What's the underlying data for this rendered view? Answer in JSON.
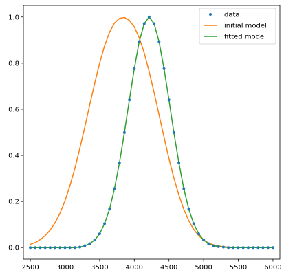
{
  "chart_data": {
    "type": "line",
    "title": "",
    "xlabel": "",
    "ylabel": "",
    "xlim": [
      2400,
      6100
    ],
    "ylim": [
      -0.05,
      1.05
    ],
    "xticks": [
      2500,
      3000,
      3500,
      4000,
      4500,
      5000,
      5500,
      6000
    ],
    "yticks": [
      0.0,
      0.2,
      0.4,
      0.6,
      0.8,
      1.0
    ],
    "xtick_labels": [
      "2500",
      "3000",
      "3500",
      "4000",
      "4500",
      "5000",
      "5500",
      "6000"
    ],
    "ytick_labels": [
      "0.0",
      "0.2",
      "0.4",
      "0.6",
      "0.8",
      "1.0"
    ],
    "grid": false,
    "legend_position": "top-right",
    "series": [
      {
        "name": "data",
        "style": "points",
        "color": "#1f77b4",
        "x": [
          2500,
          2571,
          2643,
          2714,
          2786,
          2857,
          2929,
          3000,
          3071,
          3143,
          3214,
          3286,
          3357,
          3429,
          3500,
          3571,
          3643,
          3714,
          3786,
          3857,
          3929,
          4000,
          4071,
          4143,
          4214,
          4286,
          4357,
          4429,
          4500,
          4571,
          4643,
          4714,
          4786,
          4857,
          4929,
          5000,
          5071,
          5143,
          5214,
          5286,
          5357,
          5429,
          5500,
          5571,
          5643,
          5714,
          5786,
          5857,
          5929,
          6000
        ],
        "y": [
          0.0,
          0.0,
          0.0,
          0.0,
          0.0,
          0.0,
          0.0,
          0.0,
          0.0,
          0.0,
          0.002,
          0.008,
          0.017,
          0.033,
          0.06,
          0.104,
          0.167,
          0.256,
          0.368,
          0.499,
          0.641,
          0.776,
          0.893,
          0.971,
          1.0,
          0.971,
          0.893,
          0.776,
          0.641,
          0.499,
          0.368,
          0.256,
          0.167,
          0.104,
          0.06,
          0.033,
          0.017,
          0.008,
          0.004,
          0.002,
          0.0,
          0.0,
          0.0,
          0.0,
          0.0,
          0.0,
          0.0,
          0.0,
          0.0,
          0.0
        ]
      },
      {
        "name": "initial model",
        "style": "line",
        "color": "#ff7f0e",
        "x": [
          2500,
          2571,
          2643,
          2714,
          2786,
          2857,
          2929,
          3000,
          3071,
          3143,
          3214,
          3286,
          3357,
          3429,
          3500,
          3571,
          3643,
          3714,
          3786,
          3857,
          3929,
          4000,
          4071,
          4143,
          4214,
          4286,
          4357,
          4429,
          4500,
          4571,
          4643,
          4714,
          4786,
          4857,
          4929,
          5000,
          5071,
          5143,
          5214,
          5286,
          5357,
          5429,
          5500,
          5571,
          5643,
          5714,
          5786,
          5857,
          5929,
          6000
        ],
        "y": [
          0.014,
          0.022,
          0.035,
          0.052,
          0.076,
          0.108,
          0.15,
          0.203,
          0.268,
          0.344,
          0.43,
          0.523,
          0.619,
          0.713,
          0.8,
          0.875,
          0.934,
          0.974,
          0.994,
          0.998,
          0.985,
          0.957,
          0.91,
          0.845,
          0.764,
          0.672,
          0.576,
          0.479,
          0.386,
          0.302,
          0.228,
          0.166,
          0.117,
          0.079,
          0.052,
          0.033,
          0.02,
          0.012,
          0.007,
          0.004,
          0.002,
          0.001,
          0.0,
          0.0,
          0.0,
          0.0,
          0.0,
          0.0,
          0.0,
          0.0
        ]
      },
      {
        "name": "fitted model",
        "style": "line",
        "color": "#2ca02c",
        "x": [
          2500,
          2571,
          2643,
          2714,
          2786,
          2857,
          2929,
          3000,
          3071,
          3143,
          3214,
          3286,
          3357,
          3429,
          3500,
          3571,
          3643,
          3714,
          3786,
          3857,
          3929,
          4000,
          4071,
          4143,
          4214,
          4286,
          4357,
          4429,
          4500,
          4571,
          4643,
          4714,
          4786,
          4857,
          4929,
          5000,
          5071,
          5143,
          5214,
          5286,
          5357,
          5429,
          5500,
          5571,
          5643,
          5714,
          5786,
          5857,
          5929,
          6000
        ],
        "y": [
          0.0,
          0.0,
          0.0,
          0.0,
          0.0,
          0.0,
          0.0,
          0.0,
          0.0,
          0.0,
          0.002,
          0.008,
          0.017,
          0.033,
          0.06,
          0.104,
          0.167,
          0.256,
          0.368,
          0.499,
          0.641,
          0.776,
          0.893,
          0.971,
          1.0,
          0.971,
          0.893,
          0.776,
          0.641,
          0.499,
          0.368,
          0.256,
          0.167,
          0.104,
          0.06,
          0.033,
          0.017,
          0.008,
          0.004,
          0.002,
          0.0,
          0.0,
          0.0,
          0.0,
          0.0,
          0.0,
          0.0,
          0.0,
          0.0,
          0.0
        ]
      }
    ]
  }
}
